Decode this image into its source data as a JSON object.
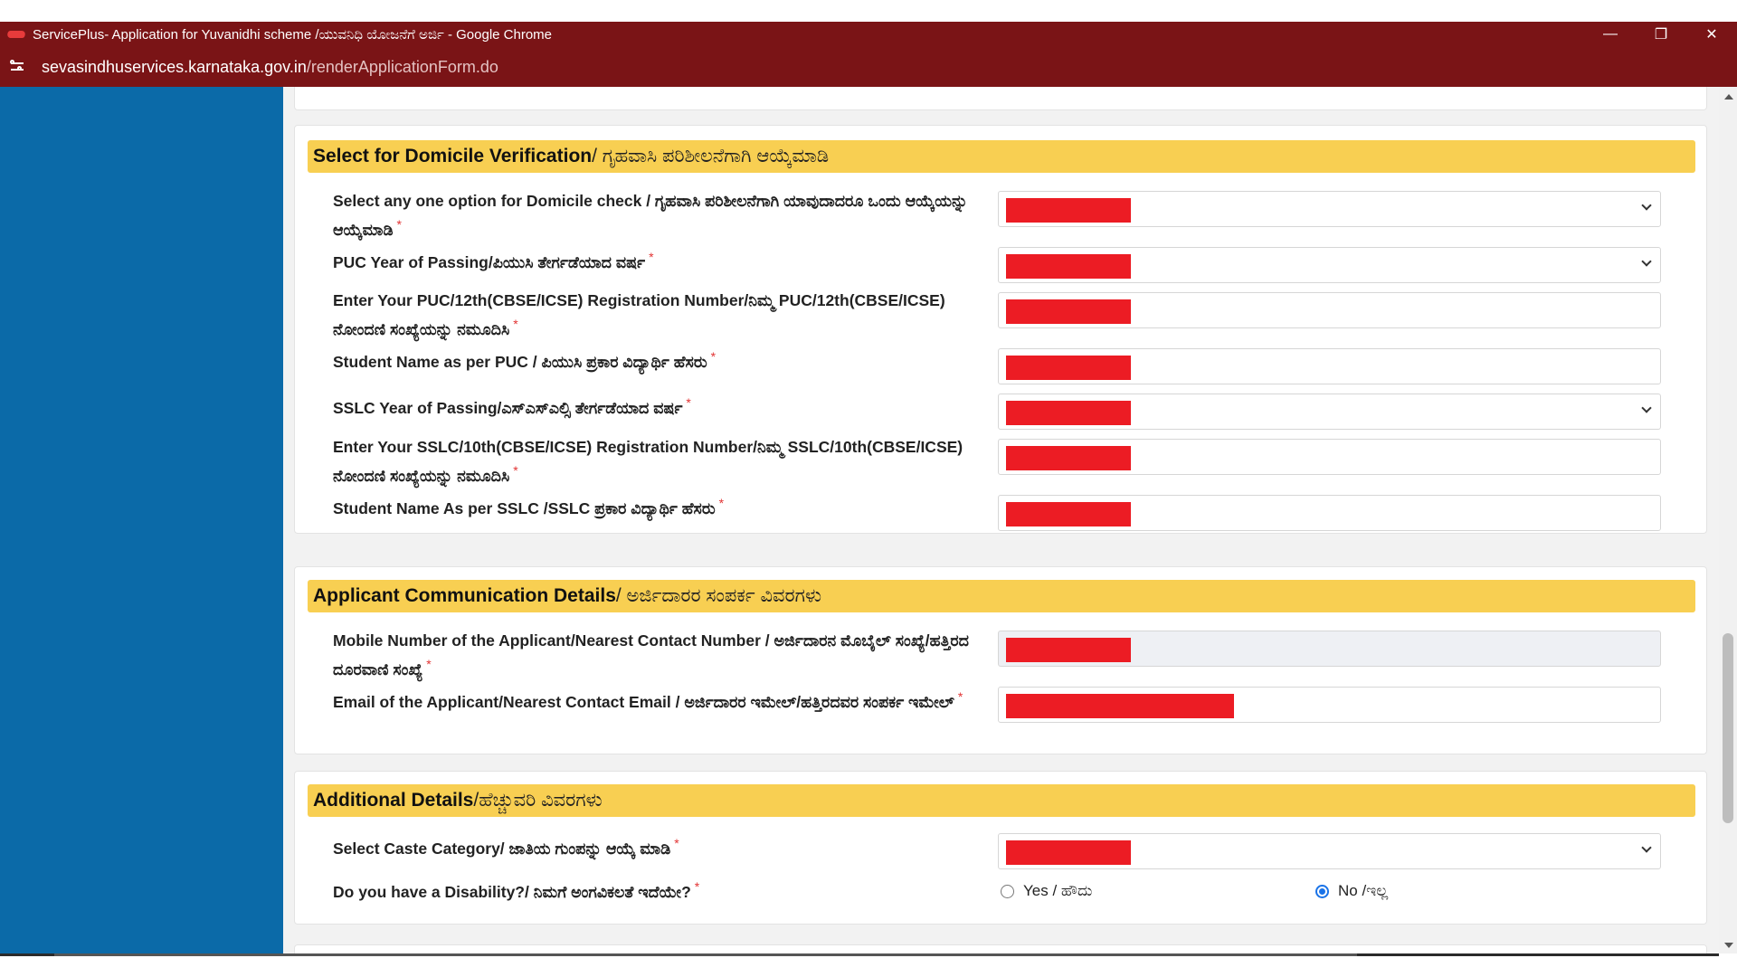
{
  "browser": {
    "window_title": "ServicePlus- Application for Yuvanidhi scheme /ಯುವನಿಧಿ ಯೋಜನೆಗೆ ಅರ್ಜಿ - Google Chrome",
    "url_host": "sevasindhuservices.karnataka.gov.in",
    "url_path": "/renderApplicationForm.do",
    "controls": {
      "minimize": "—",
      "restore": "❐",
      "close": "✕"
    }
  },
  "sections": {
    "domicile": {
      "title_en": "Select for Domicile Verification",
      "title_kn": " / ಗೃಹವಾಸಿ ಪರಿಶೀಲನೆಗಾಗಿ ಆಯ್ಕೆಮಾಡಿ",
      "fields": [
        {
          "label": "Select any one option for Domicile check / ಗೃಹವಾಸಿ ಪರಿಶೀಲನೆಗಾಗಿ ಯಾವುದಾದರೂ ಒಂದು ಆಯ್ಕೆಯನ್ನು ಆಯ್ಕೆಮಾಡಿ",
          "required": "*"
        },
        {
          "label": "PUC Year of Passing/ಪಿಯುಸಿ ತೇರ್ಗಡೆಯಾದ ವರ್ಷ",
          "required": "*"
        },
        {
          "label": "Enter Your PUC/12th(CBSE/ICSE) Registration Number/ನಿಮ್ಮ PUC/12th(CBSE/ICSE) ನೋಂದಣಿ ಸಂಖ್ಯೆಯನ್ನು ನಮೂದಿಸಿ",
          "required": "*"
        },
        {
          "label": "Student Name as per PUC / ಪಿಯುಸಿ ಪ್ರಕಾರ ವಿದ್ಯಾರ್ಥಿ ಹೆಸರು",
          "required": "*"
        },
        {
          "label": "SSLC Year of Passing/ಎಸ್ಎಸ್ಎಲ್ಸಿ ತೇರ್ಗಡೆಯಾದ ವರ್ಷ",
          "required": "*"
        },
        {
          "label": "Enter Your SSLC/10th(CBSE/ICSE) Registration Number/ನಿಮ್ಮ SSLC/10th(CBSE/ICSE) ನೋಂದಣಿ ಸಂಖ್ಯೆಯನ್ನು ನಮೂದಿಸಿ",
          "required": "*"
        },
        {
          "label": "Student Name As per SSLC /SSLC ಪ್ರಕಾರ ವಿದ್ಯಾರ್ಥಿ ಹೆಸರು",
          "required": "*"
        }
      ]
    },
    "communication": {
      "title_en": "Applicant Communication Details",
      "title_kn": " / ಅರ್ಜಿದಾರರ ಸಂಪರ್ಕ ವಿವರಗಳು",
      "fields": [
        {
          "label": "Mobile Number of the Applicant/Nearest Contact Number / ಅರ್ಜಿದಾರನ ಮೊಬೈಲ್ ಸಂಖ್ಯೆ/ಹತ್ತಿರದ ದೂರವಾಣಿ ಸಂಖ್ಯೆ",
          "required": "*"
        },
        {
          "label": "Email of the Applicant/Nearest Contact Email / ಅರ್ಜಿದಾರರ ಇಮೇಲ್/ಹತ್ತಿರದವರ ಸಂಪರ್ಕ ಇಮೇಲ್",
          "required": "*"
        }
      ]
    },
    "additional": {
      "title_en": "Additional Details",
      "title_kn": " /ಹೆಚ್ಚುವರಿ ವಿವರಗಳು",
      "fields": [
        {
          "label": "Select Caste Category/ ಜಾತಿಯ ಗುಂಪನ್ನು ಆಯ್ಕೆ ಮಾಡಿ",
          "required": "*"
        },
        {
          "label": "Do you have a Disability?/ ನಿಮಗೆ ಅಂಗವಿಕಲತೆ ಇದೆಯೇ?",
          "required": "*"
        }
      ],
      "disability_options": [
        {
          "label": "Yes / ಹೌದು",
          "selected": false
        },
        {
          "label": "No /ಇಲ್ಲ",
          "selected": true
        }
      ]
    }
  },
  "colors": {
    "titlebar": "#7a1416",
    "sidebar": "#0b6aa8",
    "section_header": "#f8cf52",
    "redaction": "#ec1c24"
  }
}
